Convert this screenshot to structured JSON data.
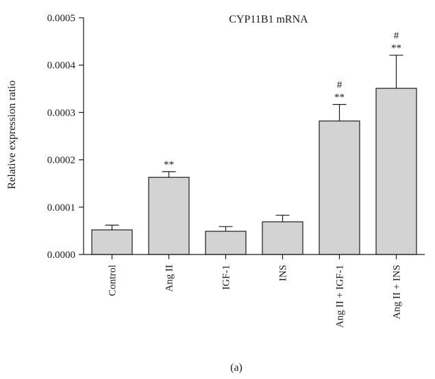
{
  "chart_data": {
    "type": "bar",
    "title": "CYP11B1 mRNA",
    "ylabel": "Relative expression ratio",
    "xlabel": "",
    "panel_label": "(a)",
    "ylim": [
      0,
      0.0005
    ],
    "yticks": [
      "0.0000",
      "0.0001",
      "0.0002",
      "0.0003",
      "0.0004",
      "0.0005"
    ],
    "ytick_values": [
      0,
      0.0001,
      0.0002,
      0.0003,
      0.0004,
      0.0005
    ],
    "categories": [
      "Control",
      "Ang II",
      "IGF-1",
      "INS",
      "Ang II + IGF-1",
      "Ang II + INS"
    ],
    "values": [
      5.2e-05,
      0.000163,
      4.9e-05,
      6.9e-05,
      0.000282,
      0.000351
    ],
    "errors": [
      1e-05,
      1.2e-05,
      1e-05,
      1.4e-05,
      3.5e-05,
      7e-05
    ],
    "significance_stars": [
      "",
      "**",
      "",
      "",
      "**",
      "**"
    ],
    "significance_hash": [
      "",
      "",
      "",
      "",
      "#",
      "#"
    ],
    "bar_color": "#d3d3d3",
    "grid": false
  }
}
